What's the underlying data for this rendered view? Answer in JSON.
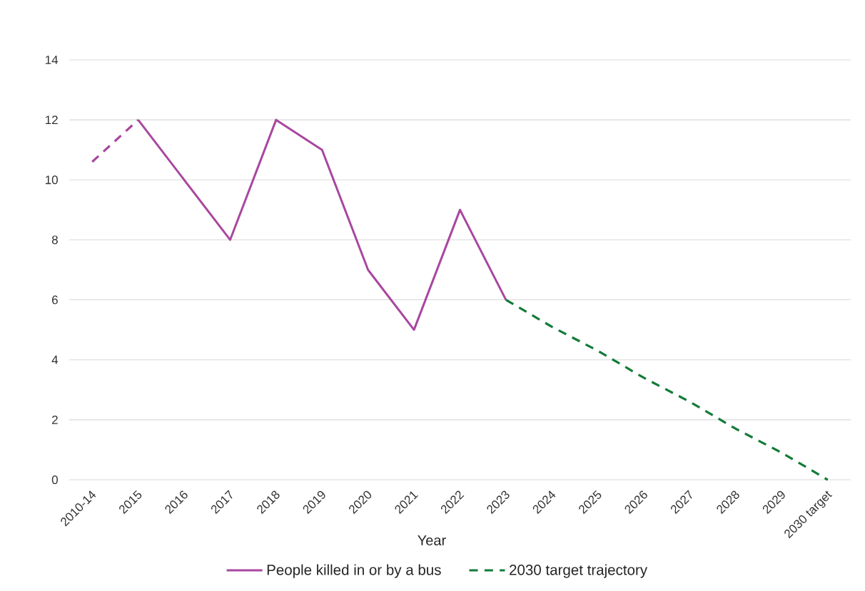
{
  "chart_data": {
    "type": "line",
    "xlabel": "Year",
    "categories": [
      "2010-14",
      "2015",
      "2016",
      "2017",
      "2018",
      "2019",
      "2020",
      "2021",
      "2022",
      "2023",
      "2024",
      "2025",
      "2026",
      "2027",
      "2028",
      "2029",
      "2030 target"
    ],
    "series": [
      {
        "name": "People killed in or by a bus",
        "color": "#a8479f",
        "line_style": "solid",
        "values": [
          null,
          12,
          10,
          8,
          12,
          11,
          7,
          5,
          9,
          6,
          null,
          null,
          null,
          null,
          null,
          null,
          null
        ]
      },
      {
        "color": "#a8479f",
        "line_style": "dashed",
        "values": [
          10.6,
          12,
          null,
          null,
          null,
          null,
          null,
          null,
          null,
          null,
          null,
          null,
          null,
          null,
          null,
          null,
          null
        ]
      },
      {
        "name": "2030 target trajectory",
        "color": "#137b38",
        "line_style": "dashed",
        "values": [
          null,
          null,
          null,
          null,
          null,
          null,
          null,
          null,
          null,
          6,
          5.1,
          4.3,
          3.4,
          2.6,
          1.7,
          0.9,
          0
        ]
      }
    ],
    "ylim": [
      0,
      14
    ],
    "yticks": [
      0,
      2,
      4,
      6,
      8,
      10,
      12,
      14
    ],
    "grid": "y",
    "legend": "bottom"
  }
}
